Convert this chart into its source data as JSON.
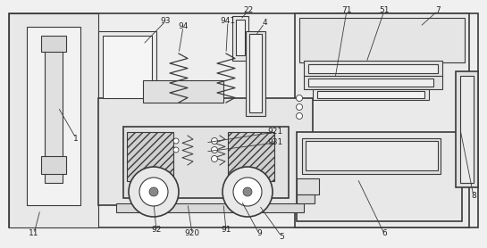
{
  "fig_w": 5.45,
  "fig_h": 2.78,
  "dpi": 100,
  "bg": "#f0f0f0",
  "lc": "#3a3a3a",
  "fc_light": "#f0f0f0",
  "fc_mid": "#e0e0e0",
  "fc_dark": "#cccccc",
  "fc_hatch": "#d0d0d0",
  "lw": 0.8,
  "lw2": 1.2
}
